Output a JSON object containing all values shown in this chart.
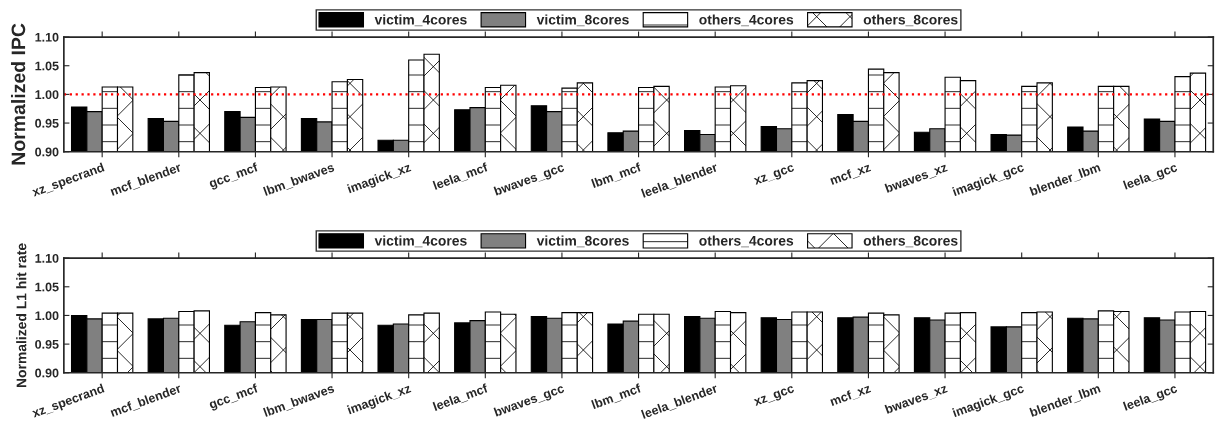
{
  "chart_data": [
    {
      "type": "bar",
      "ylabel": "Normalized IPC",
      "categories": [
        "xz_specrand",
        "mcf_blender",
        "gcc_mcf",
        "lbm_bwaves",
        "imagick_xz",
        "leela_mcf",
        "bwaves_gcc",
        "lbm_mcf",
        "leela_blender",
        "xz_gcc",
        "mcf_xz",
        "bwaves_xz",
        "imagick_gcc",
        "blender_lbm",
        "leela_gcc"
      ],
      "series": [
        {
          "name": "victim_4cores",
          "color": "#000000",
          "values": [
            0.978,
            0.958,
            0.97,
            0.958,
            0.92,
            0.973,
            0.98,
            0.933,
            0.937,
            0.944,
            0.965,
            0.934,
            0.93,
            0.943,
            0.957
          ]
        },
        {
          "name": "victim_8cores",
          "color": "#808080",
          "values": [
            0.97,
            0.953,
            0.96,
            0.952,
            0.92,
            0.977,
            0.97,
            0.936,
            0.93,
            0.94,
            0.953,
            0.94,
            0.929,
            0.936,
            0.953
          ]
        },
        {
          "name": "others_4cores",
          "color": "#ffffff",
          "values": [
            1.013,
            1.034,
            1.012,
            1.022,
            1.06,
            1.012,
            1.011,
            1.012,
            1.013,
            1.02,
            1.044,
            1.03,
            1.014,
            1.014,
            1.031
          ]
        },
        {
          "name": "others_8cores",
          "color": "#ffffff",
          "values": [
            1.013,
            1.038,
            1.013,
            1.026,
            1.07,
            1.016,
            1.02,
            1.014,
            1.015,
            1.024,
            1.038,
            1.024,
            1.02,
            1.014,
            1.037
          ]
        }
      ],
      "ylim": [
        0.9,
        1.1
      ],
      "yticks": [
        {
          "value": 0.9,
          "label": "0.90"
        },
        {
          "value": 0.95,
          "label": "0.95"
        },
        {
          "value": 1.0,
          "label": "1.00"
        },
        {
          "value": 1.05,
          "label": "1.05"
        },
        {
          "value": 1.1,
          "label": "1.10"
        }
      ],
      "ref_lines": [
        {
          "axis": "y",
          "value": 1.0,
          "color": "#ff0000",
          "line_style": "dotted"
        }
      ],
      "legend": "top",
      "grid": false
    },
    {
      "type": "bar",
      "ylabel": "Normalized L1 hit rate",
      "categories": [
        "xz_specrand",
        "mcf_blender",
        "gcc_mcf",
        "lbm_bwaves",
        "imagick_xz",
        "leela_mcf",
        "bwaves_gcc",
        "lbm_mcf",
        "leela_blender",
        "xz_gcc",
        "mcf_xz",
        "bwaves_xz",
        "imagick_gcc",
        "blender_lbm",
        "leela_gcc"
      ],
      "series": [
        {
          "name": "victim_4cores",
          "color": "#000000",
          "values": [
            1.0,
            0.994,
            0.983,
            0.993,
            0.983,
            0.987,
            0.998,
            0.985,
            0.998,
            0.996,
            0.996,
            0.996,
            0.98,
            0.995,
            0.996
          ]
        },
        {
          "name": "victim_8cores",
          "color": "#808080",
          "values": [
            0.994,
            0.995,
            0.989,
            0.993,
            0.985,
            0.991,
            0.995,
            0.99,
            0.995,
            0.993,
            0.997,
            0.992,
            0.98,
            0.994,
            0.992
          ]
        },
        {
          "name": "others_4cores",
          "color": "#ffffff",
          "values": [
            1.004,
            1.007,
            1.005,
            1.004,
            1.001,
            1.006,
            1.005,
            1.002,
            1.007,
            1.006,
            1.004,
            1.004,
            1.005,
            1.008,
            1.006
          ]
        },
        {
          "name": "others_8cores",
          "color": "#ffffff",
          "values": [
            1.004,
            1.008,
            1.001,
            1.004,
            1.004,
            1.002,
            1.005,
            1.002,
            1.005,
            1.006,
            1.001,
            1.005,
            1.006,
            1.007,
            1.007
          ]
        }
      ],
      "ylim": [
        0.9,
        1.1
      ],
      "yticks": [
        {
          "value": 0.9,
          "label": "0.90"
        },
        {
          "value": 0.95,
          "label": "0.95"
        },
        {
          "value": 1.0,
          "label": "1.00"
        },
        {
          "value": 1.05,
          "label": "1.05"
        },
        {
          "value": 1.1,
          "label": "1.10"
        }
      ],
      "legend": "top",
      "grid": false
    }
  ]
}
